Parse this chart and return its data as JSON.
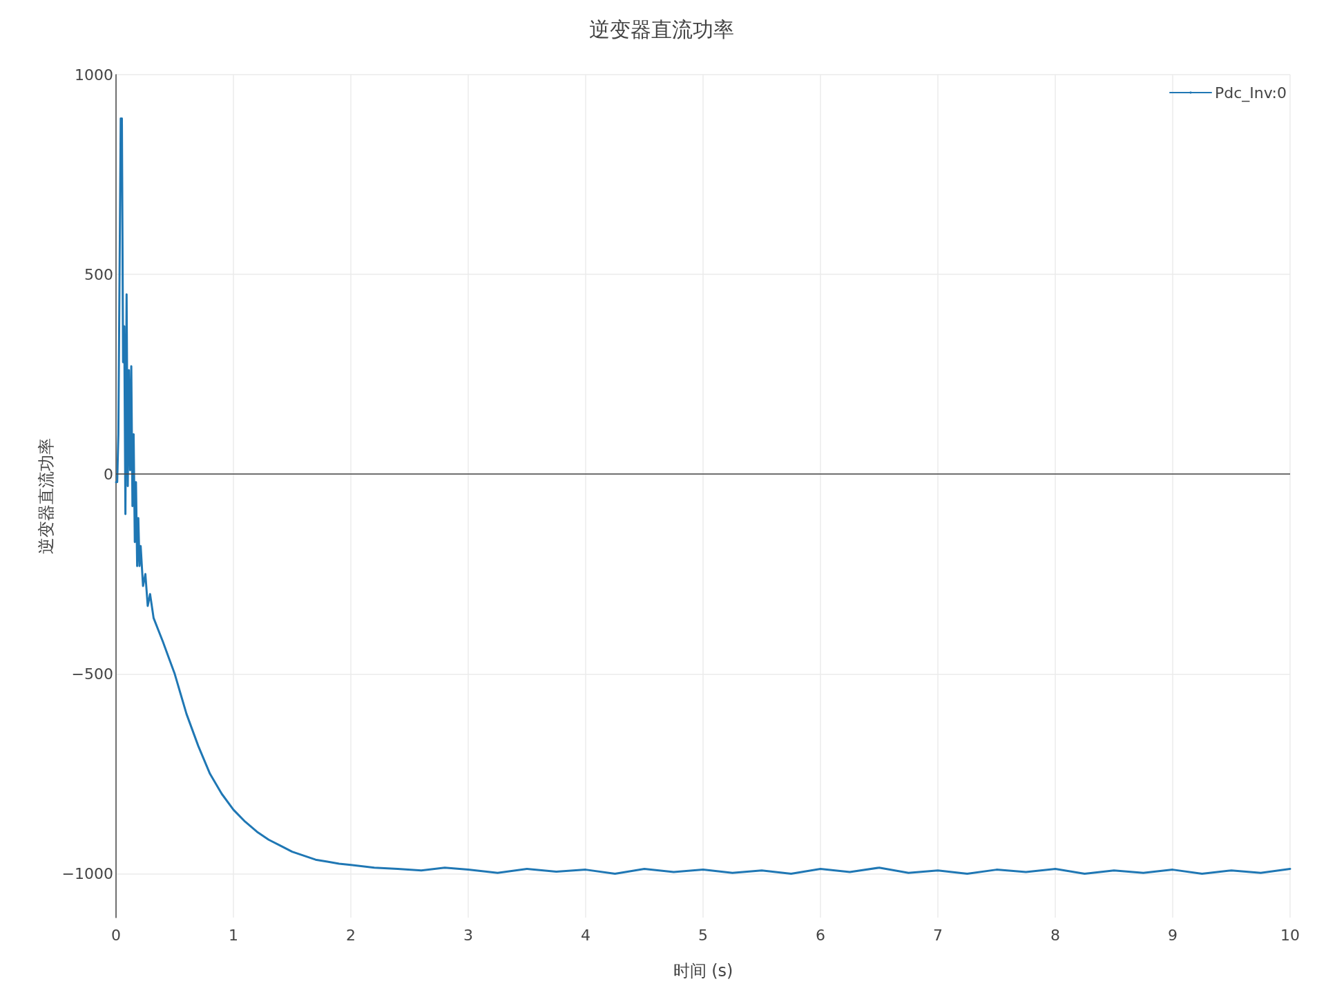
{
  "chart_data": {
    "type": "line",
    "title": "逆变器直流功率",
    "xlabel": "时间 (s)",
    "ylabel": "逆变器直流功率",
    "series": [
      {
        "name": "Pdc_Inv:0",
        "color": "#1f77b4",
        "x": [
          0,
          0.01,
          0.02,
          0.03,
          0.04,
          0.05,
          0.06,
          0.07,
          0.08,
          0.09,
          0.1,
          0.11,
          0.12,
          0.13,
          0.14,
          0.15,
          0.16,
          0.17,
          0.18,
          0.19,
          0.2,
          0.21,
          0.23,
          0.25,
          0.27,
          0.29,
          0.32,
          0.36,
          0.4,
          0.45,
          0.5,
          0.55,
          0.6,
          0.7,
          0.8,
          0.9,
          1.0,
          1.1,
          1.2,
          1.3,
          1.4,
          1.5,
          1.6,
          1.7,
          1.8,
          1.9,
          2.0,
          2.2,
          2.4,
          2.6,
          2.8,
          3.0,
          3.25,
          3.5,
          3.75,
          4.0,
          4.25,
          4.5,
          4.75,
          5.0,
          5.25,
          5.5,
          5.75,
          6.0,
          6.25,
          6.5,
          6.75,
          7.0,
          7.25,
          7.5,
          7.75,
          8.0,
          8.25,
          8.5,
          8.75,
          9.0,
          9.25,
          9.5,
          9.75,
          10
        ],
        "values": [
          -20,
          -20,
          100,
          500,
          890,
          890,
          280,
          370,
          -100,
          450,
          -30,
          260,
          10,
          270,
          -80,
          100,
          -170,
          -20,
          -230,
          -110,
          -230,
          -180,
          -280,
          -250,
          -330,
          -300,
          -360,
          -390,
          -420,
          -460,
          -500,
          -550,
          -600,
          -680,
          -750,
          -800,
          -840,
          -870,
          -895,
          -915,
          -930,
          -945,
          -955,
          -965,
          -970,
          -975,
          -978,
          -985,
          -988,
          -992,
          -985,
          -990,
          -998,
          -988,
          -995,
          -990,
          -1000,
          -988,
          -996,
          -990,
          -998,
          -992,
          -1000,
          -988,
          -996,
          -985,
          -998,
          -992,
          -1000,
          -990,
          -996,
          -988,
          -1000,
          -992,
          -998,
          -990,
          -1000,
          -992,
          -998,
          -988
        ]
      }
    ],
    "xlim": [
      0,
      10
    ],
    "xticks": [
      0,
      1,
      2,
      3,
      4,
      5,
      6,
      7,
      8,
      9,
      10
    ],
    "ylim": [
      -1110,
      1000
    ],
    "yticks": [
      {
        "value": -1000,
        "label": "−1000"
      },
      {
        "value": -500,
        "label": "−500"
      },
      0,
      500,
      1000
    ],
    "ref_lines": [
      {
        "axis": "y",
        "value": 0,
        "color": "#444444"
      }
    ],
    "grid": true,
    "legend": "top right",
    "line_style": "solid",
    "marker": "none"
  }
}
